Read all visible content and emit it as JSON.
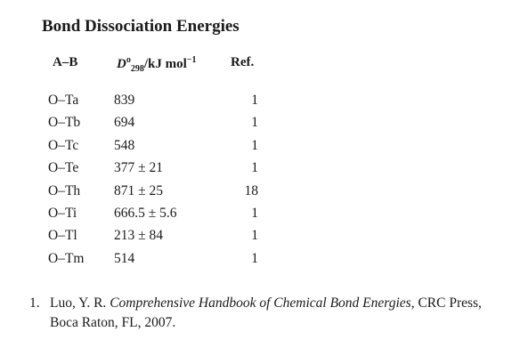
{
  "title": "Bond Dissociation Energies",
  "table": {
    "header": {
      "bond": "A–B",
      "energy": {
        "symbol": "D",
        "sup": "o",
        "sub": "298",
        "unit": "/kJ mol",
        "unit_sup": "−1"
      },
      "ref": "Ref."
    },
    "rows": [
      [
        "O–Ta",
        "839",
        "1"
      ],
      [
        "O–Tb",
        "694",
        "1"
      ],
      [
        "O–Tc",
        "548",
        "1"
      ],
      [
        "O–Te",
        "377 ± 21",
        "1"
      ],
      [
        "O–Th",
        "871 ± 25",
        "18"
      ],
      [
        "O–Ti",
        "666.5 ± 5.6",
        "1"
      ],
      [
        "O–Tl",
        "213 ± 84",
        "1"
      ],
      [
        "O–Tm",
        "514",
        "1"
      ]
    ]
  },
  "footnote": {
    "number": "1.",
    "authors": "Luo, Y. R.",
    "book": "Comprehensive Handbook of Chemical Bond Energies",
    "rest": ", CRC Press, Boca Raton, FL, 2007."
  }
}
